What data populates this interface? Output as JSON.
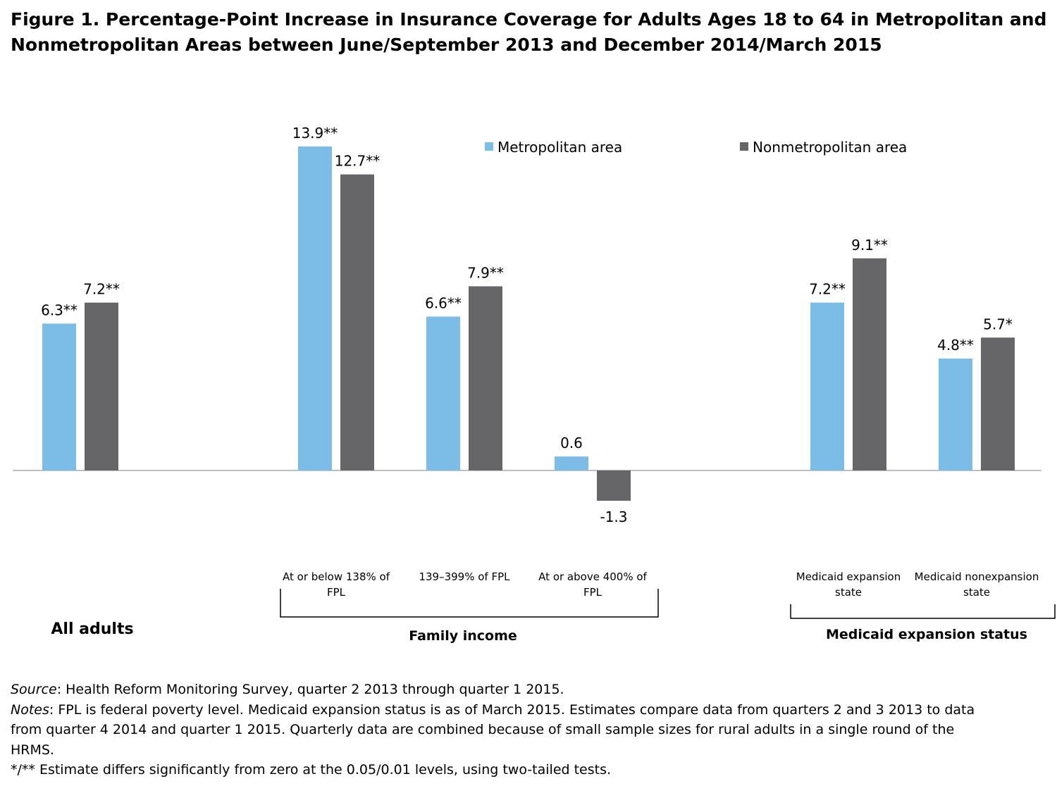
{
  "title_lines": [
    "Figure 1. Percentage-Point Increase in Insurance Coverage for Adults Ages 18 to 64 in Metropolitan and",
    "Nonmetropolitan Areas between June/September 2013 and December 2014/March 2015"
  ],
  "colors": {
    "metro": "#7bbde6",
    "nonmetro": "#666668",
    "axis": "#9a9a9a",
    "bracket": "#000000"
  },
  "chart_data": {
    "type": "bar",
    "categories": [
      "All adults",
      "At or below 138% of FPL",
      "139–399% of FPL",
      "At or above 400% of FPL",
      "Medicaid expansion state",
      "Medicaid nonexpansion state"
    ],
    "category_label_lines": [
      [],
      [
        "At or below 138% of",
        "FPL"
      ],
      [
        "139–399% of FPL"
      ],
      [
        "At or above 400% of",
        "FPL"
      ],
      [
        "Medicaid expansion",
        "state"
      ],
      [
        "Medicaid nonexpansion",
        "state"
      ]
    ],
    "series": [
      {
        "name": "Metropolitan area",
        "color": "#7bbde6",
        "values": [
          6.3,
          13.9,
          6.6,
          0.6,
          7.2,
          4.8
        ],
        "labels": [
          "6.3**",
          "13.9**",
          "6.6**",
          "0.6",
          "7.2**",
          "4.8**"
        ]
      },
      {
        "name": "Nonmetropolitan area",
        "color": "#666668",
        "values": [
          7.2,
          12.7,
          7.9,
          -1.3,
          9.1,
          5.7
        ],
        "labels": [
          "7.2**",
          "12.7**",
          "7.9**",
          "-1.3",
          "9.1**",
          "5.7*"
        ]
      }
    ],
    "groups": [
      {
        "label": "All adults",
        "categories": [
          "All adults"
        ]
      },
      {
        "label": "Family income",
        "categories": [
          "At or below 138% of FPL",
          "139–399% of FPL",
          "At or above 400% of FPL"
        ]
      },
      {
        "label": "Medicaid expansion status",
        "categories": [
          "Medicaid expansion state",
          "Medicaid nonexpansion state"
        ]
      }
    ],
    "xlabel": "",
    "ylabel": "",
    "ylim": [
      -2,
      15
    ],
    "grid": false,
    "legend_position": "top-right"
  },
  "footnotes": {
    "source_label": "Source",
    "source_text": ": Health Reform Monitoring Survey, quarter 2 2013 through quarter 1 2015.",
    "notes_label": "Notes",
    "notes_lines": [
      ": FPL is federal poverty level.  Medicaid expansion status is as of March 2015. Estimates compare data from quarters 2 and 3 2013 to data",
      "from quarter 4 2014 and quarter 1 2015. Quarterly data are combined because of small sample sizes for rural adults in a single round of the",
      "HRMS."
    ],
    "significance_text": "*/** Estimate differs significantly from zero at the 0.05/0.01 levels, using two-tailed tests."
  }
}
